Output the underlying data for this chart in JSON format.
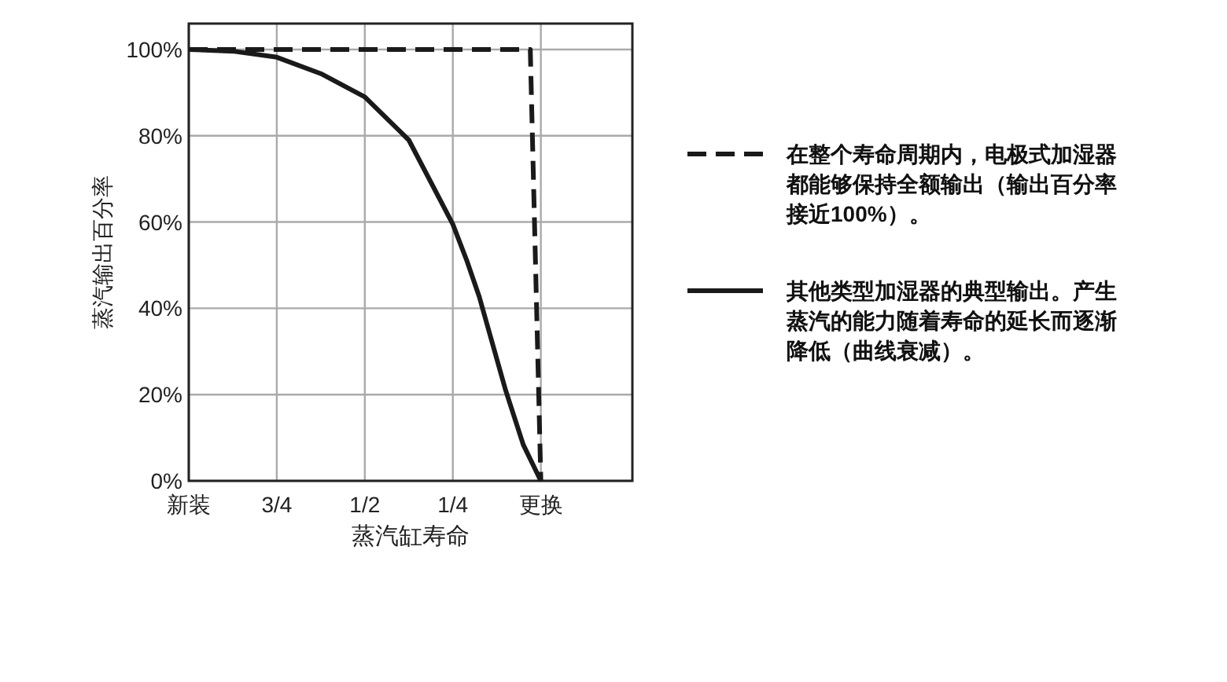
{
  "chart_data": {
    "type": "line",
    "xlabel": "蒸汽缸寿命",
    "ylabel": "蒸汽输出百分率",
    "xlim": [
      1,
      -0.26
    ],
    "xticks": [
      {
        "value": 1,
        "label": "新装"
      },
      {
        "value": 0.75,
        "label": "3/4"
      },
      {
        "value": 0.5,
        "label": "1/2"
      },
      {
        "value": 0.25,
        "label": "1/4"
      },
      {
        "value": 0,
        "label": "更换"
      }
    ],
    "ylim": [
      0,
      106
    ],
    "yticks": [
      {
        "value": 0,
        "label": "0%"
      },
      {
        "value": 20,
        "label": "20%"
      },
      {
        "value": 40,
        "label": "40%"
      },
      {
        "value": 60,
        "label": "60%"
      },
      {
        "value": 80,
        "label": "80%"
      },
      {
        "value": 100,
        "label": "100%"
      }
    ],
    "grid": true,
    "legend": "right",
    "series": [
      {
        "name": "在整个寿命周期内，电极式加湿器都能够保持全额输出（输出百分率接近100%）。",
        "color": "#1a1a1a",
        "line_style": "dashed",
        "x": [
          1,
          0.03,
          0
        ],
        "values": [
          100,
          100,
          0
        ]
      },
      {
        "name": "其他类型加湿器的典型输出。产生蒸汽的能力随着寿命的延长而逐渐降低（曲线衰减）。",
        "color": "#1a1a1a",
        "line_style": "solid",
        "x": [
          1,
          0.875,
          0.75,
          0.625,
          0.5,
          0.375,
          0.25,
          0.21,
          0.175,
          0.1,
          0.05,
          0
        ],
        "values": [
          100,
          99.6,
          98.2,
          94.4,
          89,
          79,
          59.5,
          51,
          42.7,
          21,
          8.4,
          0
        ]
      }
    ]
  }
}
